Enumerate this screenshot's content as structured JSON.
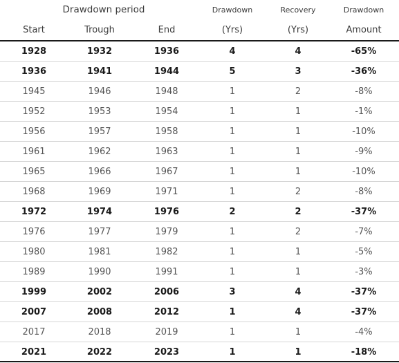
{
  "header": {
    "group_label": "Drawdown period",
    "col_drawdown": "Drawdown",
    "col_recovery": "Recovery",
    "col_amount": "Drawdown",
    "sub_start": "Start",
    "sub_trough": "Trough",
    "sub_end": "End",
    "sub_drawdown_yrs": "(Yrs)",
    "sub_recovery_yrs": "(Yrs)",
    "sub_amount": "Amount"
  },
  "rows": [
    {
      "start": "1928",
      "trough": "1932",
      "end": "1936",
      "drawdown": "4",
      "recovery": "4",
      "amount": "-65%",
      "bold": true
    },
    {
      "start": "1936",
      "trough": "1941",
      "end": "1944",
      "drawdown": "5",
      "recovery": "3",
      "amount": "-36%",
      "bold": true
    },
    {
      "start": "1945",
      "trough": "1946",
      "end": "1948",
      "drawdown": "1",
      "recovery": "2",
      "amount": "-8%",
      "bold": false
    },
    {
      "start": "1952",
      "trough": "1953",
      "end": "1954",
      "drawdown": "1",
      "recovery": "1",
      "amount": "-1%",
      "bold": false
    },
    {
      "start": "1956",
      "trough": "1957",
      "end": "1958",
      "drawdown": "1",
      "recovery": "1",
      "amount": "-10%",
      "bold": false
    },
    {
      "start": "1961",
      "trough": "1962",
      "end": "1963",
      "drawdown": "1",
      "recovery": "1",
      "amount": "-9%",
      "bold": false
    },
    {
      "start": "1965",
      "trough": "1966",
      "end": "1967",
      "drawdown": "1",
      "recovery": "1",
      "amount": "-10%",
      "bold": false
    },
    {
      "start": "1968",
      "trough": "1969",
      "end": "1971",
      "drawdown": "1",
      "recovery": "2",
      "amount": "-8%",
      "bold": false
    },
    {
      "start": "1972",
      "trough": "1974",
      "end": "1976",
      "drawdown": "2",
      "recovery": "2",
      "amount": "-37%",
      "bold": true
    },
    {
      "start": "1976",
      "trough": "1977",
      "end": "1979",
      "drawdown": "1",
      "recovery": "2",
      "amount": "-7%",
      "bold": false
    },
    {
      "start": "1980",
      "trough": "1981",
      "end": "1982",
      "drawdown": "1",
      "recovery": "1",
      "amount": "-5%",
      "bold": false
    },
    {
      "start": "1989",
      "trough": "1990",
      "end": "1991",
      "drawdown": "1",
      "recovery": "1",
      "amount": "-3%",
      "bold": false
    },
    {
      "start": "1999",
      "trough": "2002",
      "end": "2006",
      "drawdown": "3",
      "recovery": "4",
      "amount": "-37%",
      "bold": true
    },
    {
      "start": "2007",
      "trough": "2008",
      "end": "2012",
      "drawdown": "1",
      "recovery": "4",
      "amount": "-37%",
      "bold": true
    },
    {
      "start": "2017",
      "trough": "2018",
      "end": "2019",
      "drawdown": "1",
      "recovery": "1",
      "amount": "-4%",
      "bold": false
    },
    {
      "start": "2021",
      "trough": "2022",
      "end": "2023",
      "drawdown": "1",
      "recovery": "1",
      "amount": "-18%",
      "bold": true
    }
  ]
}
